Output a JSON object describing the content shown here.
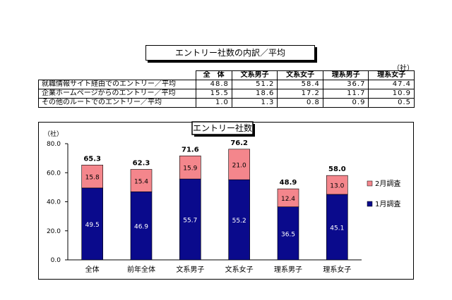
{
  "page_title": "エントリー社数の内訳／平均",
  "table": {
    "unit": "（社）",
    "headers": [
      "",
      "全　体",
      "文系男子",
      "文系女子",
      "理系男子",
      "理系女子"
    ],
    "rows": [
      {
        "label": "就職情報サイト経由でのエントリー／平均",
        "values": [
          "48.8",
          "51.2",
          "58.4",
          "36.7",
          "47.4"
        ]
      },
      {
        "label": "企業ホームページからのエントリー／平均",
        "values": [
          "15.5",
          "18.6",
          "17.2",
          "11.7",
          "10.9"
        ]
      },
      {
        "label": "その他のルートでのエントリー／平均",
        "values": [
          "1.0",
          "1.3",
          "0.8",
          "0.9",
          "0.5"
        ]
      }
    ]
  },
  "chart_data": {
    "type": "bar",
    "stacked": true,
    "title": "エントリー社数",
    "ylabel": "（社）",
    "ylim": [
      0,
      80
    ],
    "yticks": [
      "0.0",
      "20.0",
      "40.0",
      "60.0",
      "80.0"
    ],
    "categories": [
      "全体",
      "前年全体",
      "文系男子",
      "文系女子",
      "理系男子",
      "理系女子"
    ],
    "series": [
      {
        "name": "1月調査",
        "color": "#0a0a8c",
        "values": [
          49.5,
          46.9,
          55.7,
          55.2,
          36.5,
          45.1
        ],
        "labels": [
          "49.5",
          "46.9",
          "55.7",
          "55.2",
          "36.5",
          "45.1"
        ]
      },
      {
        "name": "2月調査",
        "color": "#f4868c",
        "values": [
          15.8,
          15.4,
          15.9,
          21.0,
          12.4,
          13.0
        ],
        "labels": [
          "15.8",
          "15.4",
          "15.9",
          "21.0",
          "12.4",
          "13.0"
        ]
      }
    ],
    "totals": [
      "65.3",
      "62.3",
      "71.6",
      "76.2",
      "48.9",
      "58.0"
    ],
    "legend_order": [
      "2月調査",
      "1月調査"
    ],
    "legend_position": "right",
    "grid": false
  }
}
